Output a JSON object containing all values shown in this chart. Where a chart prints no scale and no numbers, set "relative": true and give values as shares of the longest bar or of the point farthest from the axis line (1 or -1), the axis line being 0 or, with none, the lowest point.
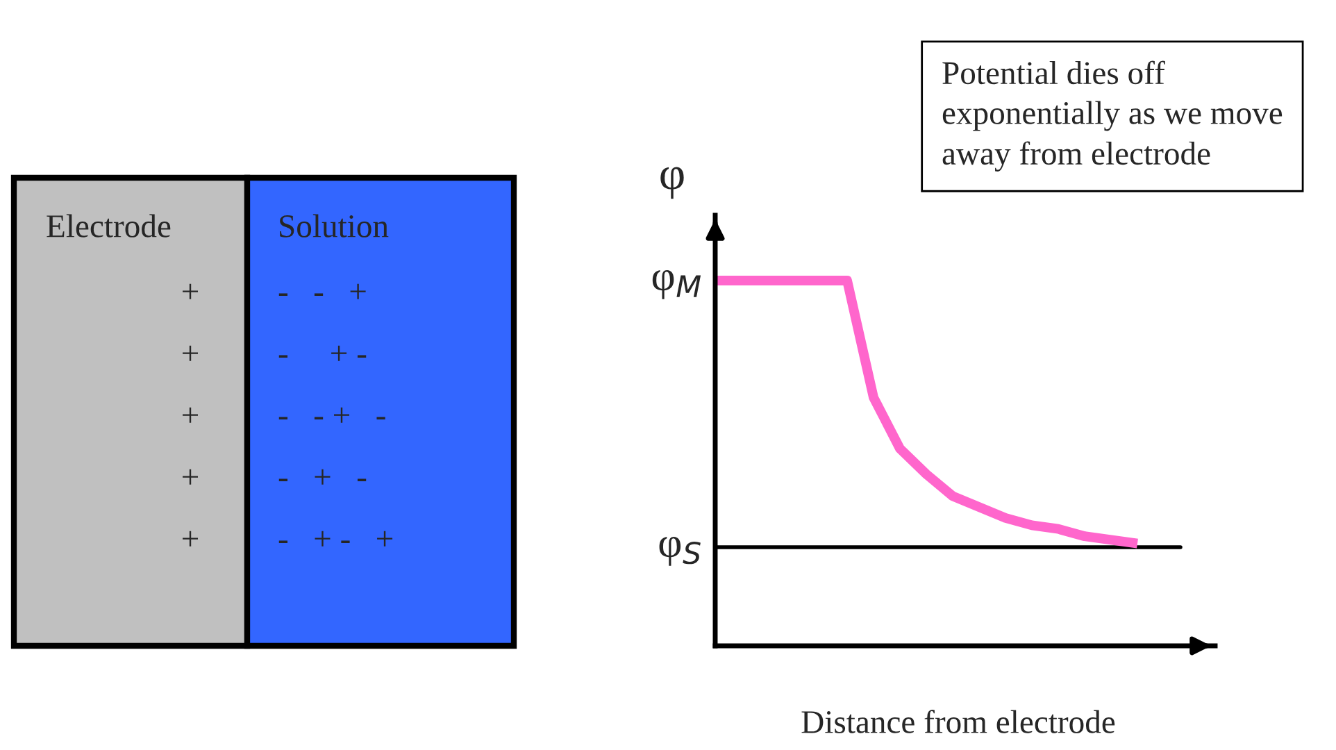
{
  "chart_data": [
    {
      "type": "other",
      "annotations": [
        "Electrode",
        "Solution",
        "+",
        "-   -   +",
        "+",
        "-     + -",
        "+",
        "-   - +   -",
        "+",
        "-   +   -",
        "+",
        "-   + -   +"
      ]
    },
    {
      "type": "line",
      "relative": true,
      "ylabel": "φ",
      "xlabel": "Distance from electrode",
      "categories": [
        null,
        null,
        null,
        null,
        null,
        null,
        null,
        null,
        null,
        null,
        null,
        null,
        null,
        null,
        null,
        null,
        null
      ],
      "series": [
        {
          "color": "#ff66cc",
          "values": [
            1.0,
            1.0,
            1.0,
            1.0,
            1.0,
            1.0,
            0.68,
            0.54,
            0.47,
            0.41,
            0.38,
            0.35,
            0.33,
            0.32,
            0.3,
            0.29,
            0.28
          ]
        }
      ],
      "ref_lines": [
        {
          "axis": "y",
          "value": 0.27,
          "label": "φ$_{S}$",
          "color": "#000000"
        }
      ],
      "annotations": [
        "φ$_{M}$",
        "Potential dies off exponentially as we move away from electrode"
      ],
      "grid": false,
      "marker": "none",
      "line_style": "solid"
    }
  ]
}
